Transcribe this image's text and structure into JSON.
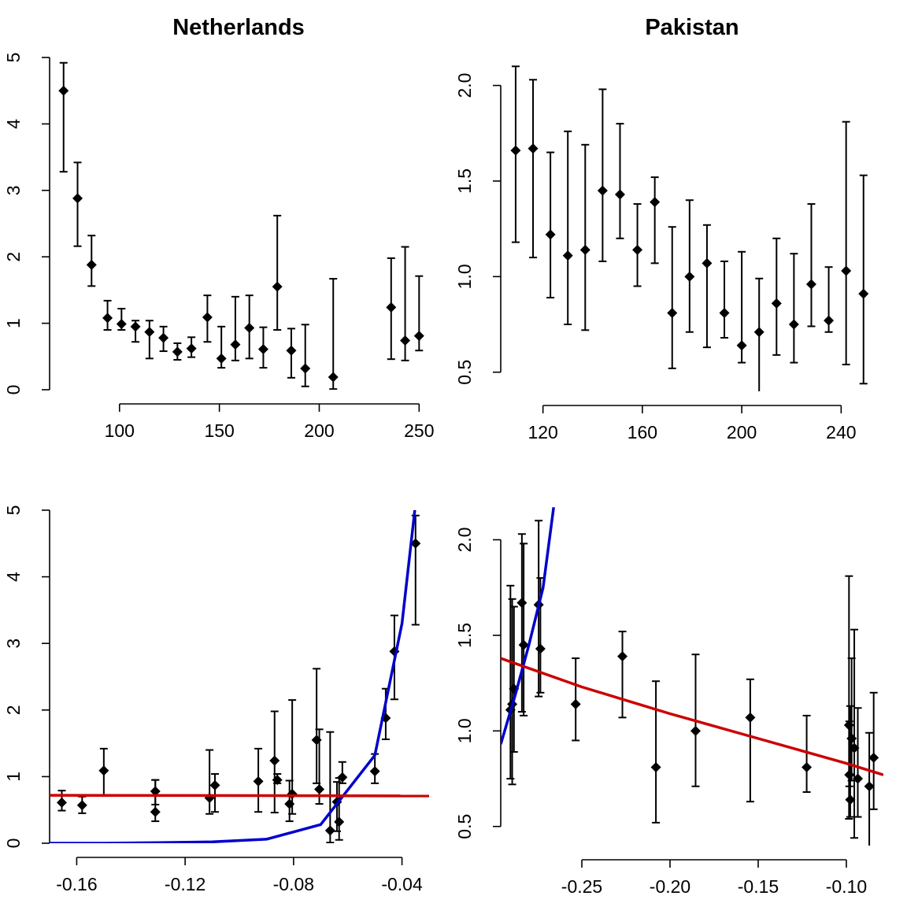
{
  "chart_data": [
    {
      "type": "scatter",
      "title": "Netherlands",
      "xlabel": "",
      "ylabel": "",
      "xlim": [
        65,
        255
      ],
      "ylim": [
        0,
        5
      ],
      "xticks": [
        100,
        150,
        200,
        250
      ],
      "yticks": [
        0,
        1,
        2,
        3,
        4,
        5
      ],
      "x": [
        72,
        79,
        86,
        94,
        101,
        108,
        115,
        122,
        129,
        136,
        144,
        151,
        158,
        165,
        172,
        179,
        186,
        193,
        207,
        236,
        243,
        250
      ],
      "y": [
        4.5,
        2.88,
        1.88,
        1.08,
        0.99,
        0.95,
        0.87,
        0.78,
        0.57,
        0.62,
        1.09,
        0.47,
        0.68,
        0.93,
        0.61,
        1.55,
        0.59,
        0.32,
        0.19,
        1.24,
        0.74,
        0.81
      ],
      "lower": [
        3.28,
        2.16,
        1.56,
        0.9,
        0.9,
        0.72,
        0.47,
        0.58,
        0.45,
        0.49,
        0.72,
        0.33,
        0.44,
        0.47,
        0.33,
        0.9,
        0.18,
        0.05,
        0.01,
        0.46,
        0.44,
        0.59
      ],
      "upper": [
        4.92,
        3.42,
        2.32,
        1.34,
        1.22,
        1.04,
        1.04,
        0.95,
        0.7,
        0.79,
        1.42,
        0.95,
        1.4,
        1.42,
        0.94,
        2.62,
        0.92,
        0.98,
        1.67,
        1.98,
        2.15,
        1.71
      ],
      "grid": false
    },
    {
      "type": "scatter",
      "title": "Pakistan",
      "xlabel": "",
      "ylabel": "",
      "xlim": [
        103,
        257
      ],
      "ylim": [
        0.4,
        2.2
      ],
      "xticks": [
        120,
        160,
        200,
        240
      ],
      "yticks": [
        0.5,
        1.0,
        1.5,
        2.0
      ],
      "ytick_labels": [
        "0.5",
        "1.0",
        "1.5",
        "2.0"
      ],
      "x": [
        109,
        116,
        123,
        130,
        137,
        144,
        151,
        158,
        165,
        172,
        179,
        186,
        193,
        200,
        207,
        214,
        221,
        228,
        235,
        242,
        249
      ],
      "y": [
        1.66,
        1.67,
        1.22,
        1.11,
        1.14,
        1.45,
        1.43,
        1.14,
        1.39,
        0.81,
        1.0,
        1.07,
        0.81,
        0.64,
        0.71,
        0.86,
        0.75,
        0.96,
        0.77,
        1.03,
        0.91
      ],
      "lower": [
        1.18,
        1.1,
        0.89,
        0.75,
        0.72,
        1.08,
        1.2,
        0.95,
        1.07,
        0.52,
        0.71,
        0.63,
        0.68,
        0.55,
        0.39,
        0.59,
        0.55,
        0.74,
        0.71,
        0.54,
        0.44
      ],
      "upper": [
        2.1,
        2.03,
        1.65,
        1.76,
        1.69,
        1.98,
        1.8,
        1.38,
        1.52,
        1.26,
        1.4,
        1.27,
        1.08,
        1.13,
        0.99,
        1.2,
        1.12,
        1.38,
        1.05,
        1.81,
        1.53
      ],
      "grid": false
    },
    {
      "type": "scatter",
      "title": "",
      "xlabel": "",
      "ylabel": "",
      "xlim": [
        -0.17,
        -0.03
      ],
      "ylim": [
        0,
        5
      ],
      "xticks": [
        -0.16,
        -0.12,
        -0.08,
        -0.04
      ],
      "yticks": [
        0,
        1,
        2,
        3,
        4,
        5
      ],
      "x": [
        -0.1655,
        -0.158,
        -0.15,
        -0.131,
        -0.131,
        -0.111,
        -0.109,
        -0.093,
        -0.087,
        -0.086,
        -0.0815,
        -0.0805,
        -0.0715,
        -0.0705,
        -0.0665,
        -0.064,
        -0.0632,
        -0.062,
        -0.05,
        -0.046,
        -0.0428,
        -0.035
      ],
      "y": [
        0.61,
        0.57,
        1.09,
        0.78,
        0.47,
        0.68,
        0.87,
        0.93,
        1.24,
        0.95,
        0.59,
        0.74,
        1.55,
        0.81,
        0.19,
        0.62,
        0.32,
        0.99,
        1.08,
        1.88,
        2.88,
        4.5
      ],
      "lower": [
        0.49,
        0.45,
        0.72,
        0.58,
        0.33,
        0.44,
        0.47,
        0.47,
        0.46,
        0.9,
        0.33,
        0.44,
        0.9,
        0.59,
        0.01,
        0.18,
        0.05,
        0.9,
        0.9,
        1.56,
        2.16,
        3.28
      ],
      "upper": [
        0.79,
        0.7,
        1.42,
        0.95,
        0.95,
        1.4,
        1.04,
        1.42,
        1.98,
        1.04,
        0.94,
        2.15,
        2.62,
        1.71,
        1.67,
        0.92,
        0.98,
        1.22,
        1.34,
        2.32,
        3.42,
        4.92
      ],
      "series": [
        {
          "name": "",
          "type": "line",
          "color": "#0000cc",
          "x": [
            -0.17,
            -0.15,
            -0.13,
            -0.11,
            -0.09,
            -0.07,
            -0.05,
            -0.04,
            -0.035
          ],
          "y": [
            0.0,
            0.0,
            0.01,
            0.02,
            0.06,
            0.28,
            1.32,
            3.3,
            5.1
          ]
        },
        {
          "name": "",
          "type": "line",
          "color": "#cc0000",
          "x": [
            -0.17,
            -0.03
          ],
          "y": [
            0.72,
            0.71
          ]
        }
      ],
      "grid": false
    },
    {
      "type": "scatter",
      "title": "",
      "xlabel": "",
      "ylabel": "",
      "xlim": [
        -0.296,
        -0.079
      ],
      "ylim": [
        0.4,
        2.2
      ],
      "xticks": [
        -0.25,
        -0.2,
        -0.15,
        -0.1
      ],
      "xtick_labels": [
        "-0.25",
        "-0.20",
        "-0.15",
        "-0.10"
      ],
      "yticks": [
        0.5,
        1.0,
        1.5,
        2.0
      ],
      "ytick_labels": [
        "0.5",
        "1.0",
        "1.5",
        "2.0"
      ],
      "x": [
        -0.2905,
        -0.2895,
        -0.2885,
        -0.284,
        -0.283,
        -0.2745,
        -0.2735,
        -0.2535,
        -0.227,
        -0.208,
        -0.1855,
        -0.1545,
        -0.1225,
        -0.0985,
        -0.0983,
        -0.0978,
        -0.097,
        -0.0955,
        -0.0935,
        -0.087,
        -0.0845
      ],
      "y": [
        1.11,
        1.14,
        1.22,
        1.67,
        1.45,
        1.66,
        1.43,
        1.14,
        1.39,
        0.81,
        1.0,
        1.07,
        0.81,
        1.03,
        0.77,
        0.64,
        0.96,
        0.91,
        0.75,
        0.71,
        0.86
      ],
      "lower": [
        0.75,
        0.72,
        0.89,
        1.1,
        1.08,
        1.18,
        1.2,
        0.95,
        1.07,
        0.52,
        0.71,
        0.63,
        0.68,
        0.54,
        0.71,
        0.55,
        0.74,
        0.44,
        0.55,
        0.39,
        0.59
      ],
      "upper": [
        1.76,
        1.69,
        1.65,
        2.03,
        1.98,
        2.1,
        1.8,
        1.38,
        1.52,
        1.26,
        1.4,
        1.27,
        1.08,
        1.81,
        1.05,
        1.13,
        1.38,
        1.53,
        1.12,
        0.99,
        1.2
      ],
      "series": [
        {
          "name": "",
          "type": "line",
          "color": "#0000cc",
          "x": [
            -0.296,
            -0.288,
            -0.28,
            -0.272,
            -0.266
          ],
          "y": [
            0.93,
            1.18,
            1.45,
            1.75,
            2.17
          ]
        },
        {
          "name": "",
          "type": "line",
          "color": "#cc0000",
          "x": [
            -0.296,
            -0.25,
            -0.2,
            -0.15,
            -0.1,
            -0.079
          ],
          "y": [
            1.38,
            1.23,
            1.09,
            0.96,
            0.83,
            0.77
          ]
        }
      ],
      "grid": false
    }
  ]
}
